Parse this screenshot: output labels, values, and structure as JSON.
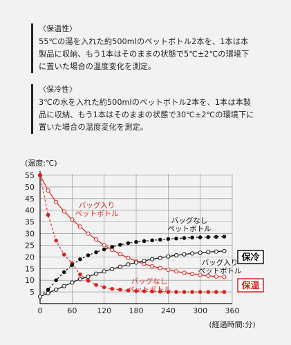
{
  "sections": [
    {
      "title": "〈保温性〉",
      "lines": [
        "55℃の湯を入れた約500mlのペットボトル2本を、1本は本",
        "製品に収納、もう1本はそのままの状態で5℃±2℃の環境下",
        "に置いた場合の温度変化を測定。"
      ]
    },
    {
      "title": "〈保冷性〉",
      "lines": [
        "3℃の水を入れた約500mlのペットボトル2本を、1本は本製",
        "品に収納、もう1本はそのままの状態で30℃±2℃の環境下に",
        "置いた場合の温度変化を測定。"
      ]
    }
  ],
  "colors": {
    "red": "#d9211c",
    "black": "#111111"
  },
  "chart_data": {
    "type": "line",
    "ylabel": "(温度:℃)",
    "xlabel": "(経過時間:分)",
    "xlim": [
      0,
      360
    ],
    "ylim": [
      0,
      55
    ],
    "xticks": [
      0,
      60,
      120,
      180,
      240,
      300,
      360
    ],
    "yticks": [
      5,
      10,
      15,
      20,
      25,
      30,
      35,
      40,
      45,
      50,
      55
    ],
    "groups": {
      "hot": "保温",
      "cold": "保冷"
    },
    "series": [
      {
        "name": "バッグ入り ペットボトル",
        "group": "hot",
        "color": "#d9211c",
        "style": "solid",
        "marker": "open",
        "x": [
          0,
          15,
          30,
          45,
          60,
          75,
          90,
          105,
          120,
          135,
          150,
          165,
          180,
          195,
          210,
          225,
          240,
          255,
          270,
          285,
          300,
          315,
          330,
          345
        ],
        "y": [
          55,
          48.5,
          43.5,
          39.5,
          36,
          33,
          30,
          27.5,
          25,
          23,
          21.2,
          19.6,
          18.2,
          17,
          16,
          15.2,
          14.5,
          13.8,
          13.2,
          12.7,
          12.3,
          11.9,
          11.6,
          11.4
        ]
      },
      {
        "name": "バッグなし ペットボトル",
        "group": "hot",
        "color": "#d9211c",
        "style": "dashed",
        "marker": "filled",
        "x": [
          0,
          15,
          30,
          45,
          60,
          75,
          90,
          105,
          120,
          135,
          150,
          165,
          180,
          195,
          210,
          225,
          240,
          255,
          270,
          285,
          300,
          315,
          330,
          345
        ],
        "y": [
          55,
          38,
          27,
          21,
          17.3,
          12.5,
          9.8,
          8,
          7,
          6.3,
          6,
          5.6,
          5.4,
          5.3,
          5.2,
          5.1,
          5,
          5,
          5,
          5,
          5,
          5,
          5,
          5
        ]
      },
      {
        "name": "バッグなし ペットボトル",
        "group": "cold",
        "color": "#111111",
        "style": "dashed",
        "marker": "filled",
        "x": [
          0,
          15,
          30,
          45,
          60,
          75,
          90,
          105,
          120,
          135,
          150,
          165,
          180,
          195,
          210,
          225,
          240,
          255,
          270,
          285,
          300,
          315,
          330,
          345
        ],
        "y": [
          3,
          6,
          10,
          13.5,
          16.5,
          19,
          20.7,
          22,
          23.2,
          24.3,
          25.2,
          25.9,
          26.4,
          26.8,
          27.1,
          27.4,
          27.7,
          27.9,
          28.1,
          28.3,
          28.4,
          28.5,
          28.6,
          28.7
        ]
      },
      {
        "name": "バッグ入り ペットボトル",
        "group": "cold",
        "color": "#111111",
        "style": "solid",
        "marker": "open",
        "x": [
          0,
          15,
          30,
          45,
          60,
          75,
          90,
          105,
          120,
          135,
          150,
          165,
          180,
          195,
          210,
          225,
          240,
          255,
          270,
          285,
          300,
          315,
          330,
          345
        ],
        "y": [
          3,
          4.5,
          6,
          7.5,
          9,
          10.5,
          11.5,
          12.8,
          13.8,
          14.8,
          15.8,
          16.8,
          17.6,
          18.3,
          19,
          19.6,
          20.2,
          20.7,
          21.1,
          21.5,
          21.8,
          22.1,
          22.3,
          22.5
        ]
      }
    ]
  }
}
